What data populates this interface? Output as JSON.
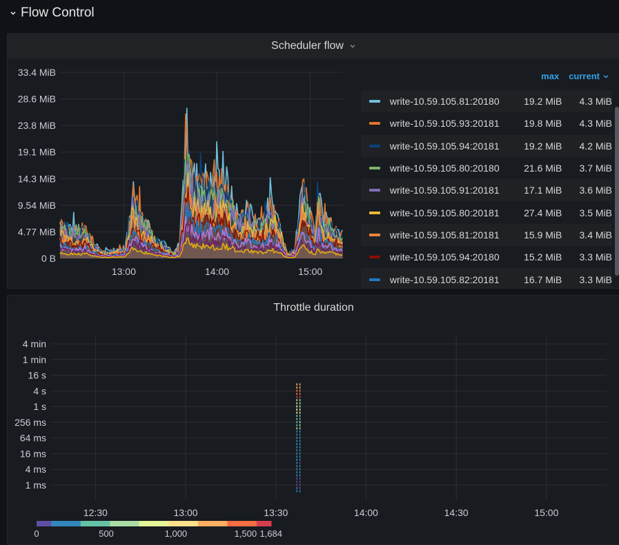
{
  "row": {
    "title": "Flow Control"
  },
  "panel1": {
    "title": "Scheduler flow",
    "legend_headers": {
      "max": "max",
      "current": "current"
    },
    "legend": [
      {
        "name": "write-10.59.105.81:20180",
        "max": "19.2 MiB",
        "current": "4.3 MiB",
        "color": "#73bfdd"
      },
      {
        "name": "write-10.59.105.93:20181",
        "max": "19.8 MiB",
        "current": "4.3 MiB",
        "color": "#e0752d"
      },
      {
        "name": "write-10.59.105.94:20181",
        "max": "19.2 MiB",
        "current": "4.2 MiB",
        "color": "#0a437c"
      },
      {
        "name": "write-10.59.105.80:20180",
        "max": "21.6 MiB",
        "current": "3.7 MiB",
        "color": "#7eb26d"
      },
      {
        "name": "write-10.59.105.91:20181",
        "max": "17.1 MiB",
        "current": "3.6 MiB",
        "color": "#806eb7"
      },
      {
        "name": "write-10.59.105.80:20181",
        "max": "27.4 MiB",
        "current": "3.5 MiB",
        "color": "#eab839"
      },
      {
        "name": "write-10.59.105.81:20181",
        "max": "15.9 MiB",
        "current": "3.4 MiB",
        "color": "#ef843c"
      },
      {
        "name": "write-10.59.105.94:20180",
        "max": "15.2 MiB",
        "current": "3.3 MiB",
        "color": "#890f02"
      },
      {
        "name": "write-10.59.105.82:20181",
        "max": "16.7 MiB",
        "current": "3.3 MiB",
        "color": "#1f78c1"
      }
    ]
  },
  "panel2": {
    "title": "Throttle duration"
  },
  "chart_data": [
    {
      "type": "area",
      "title": "Scheduler flow",
      "y_ticks": [
        "0 B",
        "4.77 MiB",
        "9.54 MiB",
        "14.3 MiB",
        "19.1 MiB",
        "23.8 MiB",
        "28.6 MiB",
        "33.4 MiB"
      ],
      "ylim": [
        0,
        33.4
      ],
      "x_ticks": [
        "13:00",
        "14:00",
        "15:00"
      ],
      "xlim": [
        "12:19",
        "15:21"
      ],
      "grid": true,
      "legend_position": "right",
      "series_colors": [
        "#73bfdd",
        "#e0752d",
        "#0a437c",
        "#7eb26d",
        "#806eb7",
        "#eab839",
        "#ef843c",
        "#890f02",
        "#1f78c1",
        "#b877d9",
        "#6d1f62",
        "#e5ac0e"
      ],
      "peaks": [
        {
          "x": "12:20",
          "y": 8.5
        },
        {
          "x": "12:30",
          "y": 6.0
        },
        {
          "x": "12:35",
          "y": 7.5
        },
        {
          "x": "12:40",
          "y": 3.5
        },
        {
          "x": "12:47",
          "y": 1.5
        },
        {
          "x": "12:55",
          "y": 2.0
        },
        {
          "x": "13:01",
          "y": 2.5
        },
        {
          "x": "13:06",
          "y": 15.0
        },
        {
          "x": "13:10",
          "y": 11.0
        },
        {
          "x": "13:15",
          "y": 8.0
        },
        {
          "x": "13:20",
          "y": 5.0
        },
        {
          "x": "13:25",
          "y": 3.5
        },
        {
          "x": "13:32",
          "y": 1.0
        },
        {
          "x": "13:36",
          "y": 3.5
        },
        {
          "x": "13:40",
          "y": 27.0
        },
        {
          "x": "13:42",
          "y": 28.6
        },
        {
          "x": "13:44",
          "y": 19.0
        },
        {
          "x": "13:48",
          "y": 17.5
        },
        {
          "x": "13:52",
          "y": 18.0
        },
        {
          "x": "13:56",
          "y": 16.5
        },
        {
          "x": "14:00",
          "y": 17.0
        },
        {
          "x": "14:05",
          "y": 18.5
        },
        {
          "x": "14:10",
          "y": 12.5
        },
        {
          "x": "14:15",
          "y": 9.0
        },
        {
          "x": "14:20",
          "y": 11.5
        },
        {
          "x": "14:25",
          "y": 8.5
        },
        {
          "x": "14:30",
          "y": 9.5
        },
        {
          "x": "14:35",
          "y": 12.5
        },
        {
          "x": "14:40",
          "y": 8.0
        },
        {
          "x": "14:45",
          "y": 1.0
        },
        {
          "x": "14:50",
          "y": 2.0
        },
        {
          "x": "14:55",
          "y": 17.5
        },
        {
          "x": "15:00",
          "y": 10.0
        },
        {
          "x": "15:03",
          "y": 6.0
        },
        {
          "x": "15:05",
          "y": 16.5
        },
        {
          "x": "15:08",
          "y": 8.0
        },
        {
          "x": "15:12",
          "y": 9.5
        },
        {
          "x": "15:15",
          "y": 7.0
        },
        {
          "x": "15:20",
          "y": 5.5
        }
      ]
    },
    {
      "type": "heatmap",
      "title": "Throttle duration",
      "y_ticks": [
        "1 ms",
        "4 ms",
        "16 ms",
        "64 ms",
        "256 ms",
        "1 s",
        "4 s",
        "16 s",
        "1 min",
        "4 min"
      ],
      "x_ticks": [
        "12:30",
        "13:00",
        "13:30",
        "14:00",
        "14:30",
        "15:00"
      ],
      "xlim": [
        "12:15",
        "15:20"
      ],
      "grid": true,
      "color_scale": {
        "ticks": [
          "0",
          "500",
          "1,000",
          "1,500"
        ],
        "max_label": "1,684",
        "min": 0,
        "max": 1684
      },
      "cells": [
        {
          "x": "13:37",
          "bucket": "1 ms",
          "count": 120
        },
        {
          "x": "13:37",
          "bucket": "4 ms",
          "count": 150
        },
        {
          "x": "13:37",
          "bucket": "16 ms",
          "count": 180
        },
        {
          "x": "13:37",
          "bucket": "64 ms",
          "count": 260
        },
        {
          "x": "13:37",
          "bucket": "256 ms",
          "count": 560
        },
        {
          "x": "13:37",
          "bucket": "1 s",
          "count": 900
        },
        {
          "x": "13:37",
          "bucket": "4 s",
          "count": 1684
        },
        {
          "x": "13:38",
          "bucket": "1 ms",
          "count": 110
        },
        {
          "x": "13:38",
          "bucket": "4 ms",
          "count": 140
        },
        {
          "x": "13:38",
          "bucket": "16 ms",
          "count": 170
        },
        {
          "x": "13:38",
          "bucket": "64 ms",
          "count": 240
        },
        {
          "x": "13:38",
          "bucket": "256 ms",
          "count": 620
        },
        {
          "x": "13:38",
          "bucket": "1 s",
          "count": 820
        },
        {
          "x": "13:38",
          "bucket": "4 s",
          "count": 1600
        }
      ]
    }
  ]
}
